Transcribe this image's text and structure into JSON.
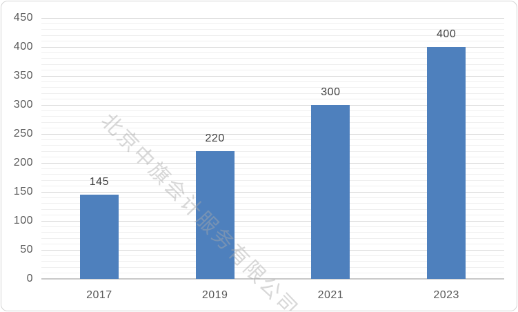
{
  "chart_data": {
    "type": "bar",
    "categories": [
      "2017",
      "2019",
      "2021",
      "2023"
    ],
    "values": [
      145,
      220,
      300,
      400
    ],
    "data_labels": [
      "145",
      "220",
      "300",
      "400"
    ],
    "title": "",
    "xlabel": "",
    "ylabel": "",
    "ylim": [
      0,
      450
    ],
    "y_major_step": 50,
    "y_minor_step": 10,
    "y_tick_labels": [
      "0",
      "50",
      "100",
      "150",
      "200",
      "250",
      "300",
      "350",
      "400",
      "450"
    ],
    "grid": "major-and-minor-horizontal",
    "legend_position": "none",
    "bar_color": "#4e80bd",
    "major_grid_color": "#d6d6d6",
    "minor_grid_color": "#efefef",
    "axis_line_color": "#c9c9c9",
    "tick_label_color": "#595959",
    "data_label_color": "#404040"
  },
  "watermark": {
    "text": "北京中旗会计服务有限公司",
    "angle_deg": 46,
    "color": "#a8a8a8"
  },
  "frame": {
    "background": "#ffffff",
    "border_color": "#d4d4d4"
  }
}
